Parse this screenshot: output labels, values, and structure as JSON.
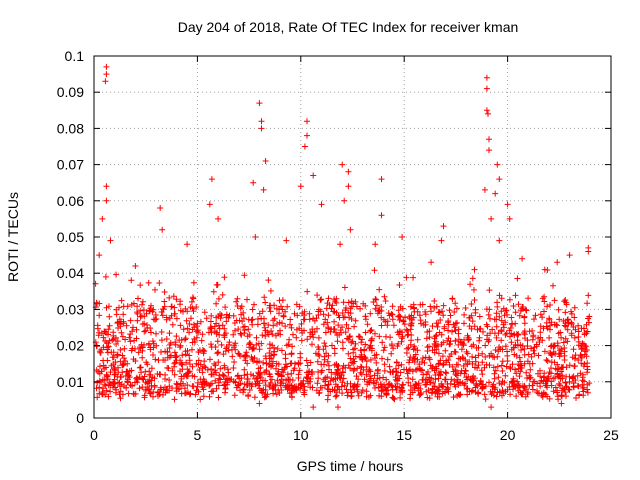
{
  "chart_data": {
    "type": "scatter",
    "title": "Day 204 of 2018, Rate Of TEC Index for receiver kman",
    "xlabel": "GPS time / hours",
    "ylabel": "ROTI / TECUs",
    "xlim": [
      0,
      25
    ],
    "ylim": [
      0,
      0.1
    ],
    "grid": true,
    "marker": "plus",
    "marker_color": "#ff0000",
    "x_ticks": [
      0,
      5,
      10,
      15,
      20,
      25
    ],
    "x_tick_labels": [
      "0",
      "5",
      "10",
      "15",
      "20",
      "25"
    ],
    "y_ticks": [
      0,
      0.01,
      0.02,
      0.03,
      0.04,
      0.05,
      0.06,
      0.07,
      0.08,
      0.09,
      0.1
    ],
    "y_tick_labels": [
      "0",
      "0.01",
      "0.02",
      "0.03",
      "0.04",
      "0.05",
      "0.06",
      "0.07",
      "0.08",
      "0.09",
      "0.1"
    ],
    "series": [
      {
        "name": "ROTI",
        "x_range_hours": [
          0.05,
          23.95
        ],
        "typical_band": [
          0.005,
          0.03
        ],
        "notable_points": [
          {
            "x": 0.6,
            "y": 0.097
          },
          {
            "x": 0.6,
            "y": 0.095
          },
          {
            "x": 0.55,
            "y": 0.093
          },
          {
            "x": 0.6,
            "y": 0.064
          },
          {
            "x": 0.6,
            "y": 0.06
          },
          {
            "x": 0.4,
            "y": 0.055
          },
          {
            "x": 0.8,
            "y": 0.049
          },
          {
            "x": 0.25,
            "y": 0.045
          },
          {
            "x": 3.2,
            "y": 0.058
          },
          {
            "x": 3.3,
            "y": 0.052
          },
          {
            "x": 5.7,
            "y": 0.066
          },
          {
            "x": 5.6,
            "y": 0.059
          },
          {
            "x": 6.0,
            "y": 0.055
          },
          {
            "x": 7.7,
            "y": 0.065
          },
          {
            "x": 8.0,
            "y": 0.087
          },
          {
            "x": 8.1,
            "y": 0.082
          },
          {
            "x": 8.1,
            "y": 0.08
          },
          {
            "x": 8.3,
            "y": 0.071
          },
          {
            "x": 8.2,
            "y": 0.063
          },
          {
            "x": 7.8,
            "y": 0.05
          },
          {
            "x": 10.3,
            "y": 0.082
          },
          {
            "x": 10.3,
            "y": 0.078
          },
          {
            "x": 10.2,
            "y": 0.075
          },
          {
            "x": 10.0,
            "y": 0.064
          },
          {
            "x": 10.6,
            "y": 0.067
          },
          {
            "x": 11.0,
            "y": 0.059
          },
          {
            "x": 12.0,
            "y": 0.07
          },
          {
            "x": 12.3,
            "y": 0.068
          },
          {
            "x": 12.3,
            "y": 0.064
          },
          {
            "x": 12.1,
            "y": 0.06
          },
          {
            "x": 12.4,
            "y": 0.052
          },
          {
            "x": 11.9,
            "y": 0.048
          },
          {
            "x": 13.9,
            "y": 0.066
          },
          {
            "x": 13.9,
            "y": 0.056
          },
          {
            "x": 14.9,
            "y": 0.05
          },
          {
            "x": 16.9,
            "y": 0.053
          },
          {
            "x": 16.8,
            "y": 0.049
          },
          {
            "x": 19.0,
            "y": 0.094
          },
          {
            "x": 19.0,
            "y": 0.091
          },
          {
            "x": 19.0,
            "y": 0.085
          },
          {
            "x": 19.05,
            "y": 0.084
          },
          {
            "x": 19.1,
            "y": 0.077
          },
          {
            "x": 19.1,
            "y": 0.074
          },
          {
            "x": 18.9,
            "y": 0.063
          },
          {
            "x": 19.5,
            "y": 0.07
          },
          {
            "x": 19.6,
            "y": 0.066
          },
          {
            "x": 19.4,
            "y": 0.062
          },
          {
            "x": 20.0,
            "y": 0.059
          },
          {
            "x": 20.1,
            "y": 0.055
          },
          {
            "x": 19.2,
            "y": 0.055
          },
          {
            "x": 19.6,
            "y": 0.049
          },
          {
            "x": 20.7,
            "y": 0.044
          },
          {
            "x": 23.0,
            "y": 0.045
          },
          {
            "x": 23.9,
            "y": 0.047
          },
          {
            "x": 23.9,
            "y": 0.046
          },
          {
            "x": 2.0,
            "y": 0.042
          },
          {
            "x": 4.5,
            "y": 0.048
          },
          {
            "x": 9.3,
            "y": 0.049
          },
          {
            "x": 13.6,
            "y": 0.048
          },
          {
            "x": 16.3,
            "y": 0.043
          },
          {
            "x": 18.4,
            "y": 0.041
          },
          {
            "x": 21.8,
            "y": 0.041
          },
          {
            "x": 22.4,
            "y": 0.043
          },
          {
            "x": 11.8,
            "y": 0.003
          },
          {
            "x": 19.2,
            "y": 0.003
          },
          {
            "x": 8.0,
            "y": 0.004
          },
          {
            "x": 22.6,
            "y": 0.004
          },
          {
            "x": 10.6,
            "y": 0.003
          }
        ]
      }
    ]
  }
}
